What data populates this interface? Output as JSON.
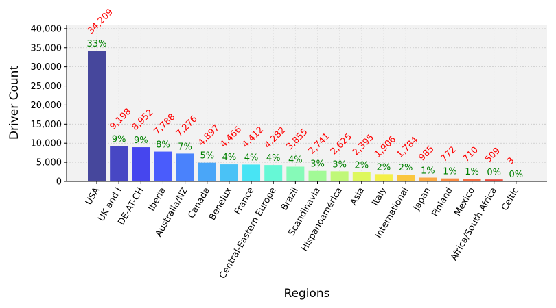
{
  "chart_data": {
    "type": "bar",
    "title": "",
    "xlabel": "Regions",
    "ylabel": "Driver Count",
    "ylim": [
      0,
      41050
    ],
    "yticks": [
      0,
      5000,
      10000,
      15000,
      20000,
      25000,
      30000,
      35000,
      40000
    ],
    "ytick_labels": [
      "0",
      "5,000",
      "10,000",
      "15,000",
      "20,000",
      "25,000",
      "30,000",
      "35,000",
      "40,000"
    ],
    "grid": true,
    "categories": [
      "USA",
      "UK and I",
      "DE-AT-CH",
      "Iberia",
      "Australia/NZ",
      "Canada",
      "Benelux",
      "France",
      "Central-Eastern Europe",
      "Brazil",
      "Scandinavia",
      "Hispanoamérica",
      "Asia",
      "Italy",
      "International",
      "Japan",
      "Finland",
      "Mexico",
      "Africa/South Africa",
      "Celtic"
    ],
    "values": [
      34209,
      9198,
      8952,
      7788,
      7276,
      4897,
      4466,
      4412,
      4282,
      3855,
      2741,
      2625,
      2395,
      1906,
      1784,
      985,
      772,
      710,
      509,
      3
    ],
    "value_labels": [
      "34,209",
      "9,198",
      "8,952",
      "7,788",
      "7,276",
      "4,897",
      "4,466",
      "4,412",
      "4,282",
      "3,855",
      "2,741",
      "2,625",
      "2,395",
      "1,906",
      "1,784",
      "985",
      "772",
      "710",
      "509",
      "3"
    ],
    "percent_labels": [
      "33%",
      "9%",
      "9%",
      "8%",
      "7%",
      "5%",
      "4%",
      "4%",
      "4%",
      "4%",
      "3%",
      "3%",
      "2%",
      "2%",
      "2%",
      "1%",
      "1%",
      "1%",
      "0%",
      "0%"
    ],
    "colors": [
      "#46479c",
      "#4747c4",
      "#4646ee",
      "#4a5cfc",
      "#4a82fc",
      "#4aa6f8",
      "#4ac2f6",
      "#48e4f4",
      "#66f8d6",
      "#86fab8",
      "#a2fa96",
      "#c0f878",
      "#def85c",
      "#f4f048",
      "#fac63e",
      "#fbaa44",
      "#f98a40",
      "#f46c40",
      "#ec4a3a",
      "#e03030"
    ],
    "value_label_color": "#ff0000",
    "percent_label_color": "#008000"
  }
}
